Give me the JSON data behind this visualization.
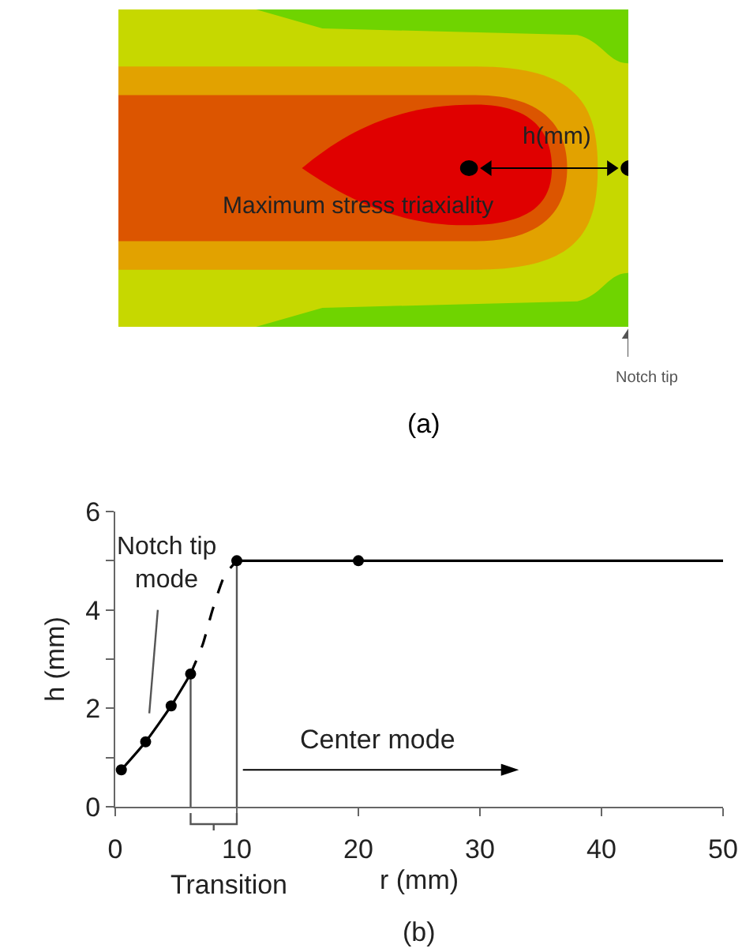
{
  "chart_data": [
    {
      "type": "other",
      "annotations": [
        "h(mm)",
        "Maximum stress triaxiality",
        "Notch tip",
        "(a)"
      ]
    },
    {
      "type": "line",
      "xlabel": "r (mm)",
      "ylabel": "h (mm)",
      "xlim": [
        0,
        50
      ],
      "ylim": [
        0,
        6
      ],
      "xticks": [
        0,
        10,
        20,
        30,
        40,
        50
      ],
      "yticks": [
        0,
        {
          "value": 1,
          "label": null
        },
        2,
        {
          "value": 3,
          "label": null
        },
        4,
        {
          "value": 5,
          "label": null
        },
        6
      ],
      "series": [
        {
          "color": "#000000",
          "marker": "circle",
          "line_style": "solid",
          "x": [
            0.5,
            2.5,
            4.6,
            6.2
          ],
          "values": [
            0.75,
            1.32,
            2.05,
            2.7
          ]
        },
        {
          "color": "#000000",
          "marker": "none",
          "line_style": "dashed",
          "x": [
            6.2,
            7.2,
            8.0,
            9.0,
            10
          ],
          "values": [
            2.7,
            3.3,
            4.0,
            4.7,
            5.0
          ]
        },
        {
          "color": "#000000",
          "marker": "circle",
          "line_style": "solid",
          "x": [
            10,
            20
          ],
          "values": [
            5.0,
            5.0
          ]
        },
        {
          "color": "#000000",
          "marker": "none",
          "line_style": "solid",
          "x": [
            20,
            50
          ],
          "values": [
            5.0,
            5.0
          ]
        }
      ],
      "ref_lines": [
        {
          "axis": "x",
          "value": 6.2,
          "label": null,
          "color": "#555555"
        },
        {
          "axis": "x",
          "value": 10,
          "label": null,
          "color": "#555555"
        }
      ],
      "annotations": [
        "Notch tip\nmode",
        "Center mode",
        "Transition",
        "(b)"
      ]
    }
  ]
}
